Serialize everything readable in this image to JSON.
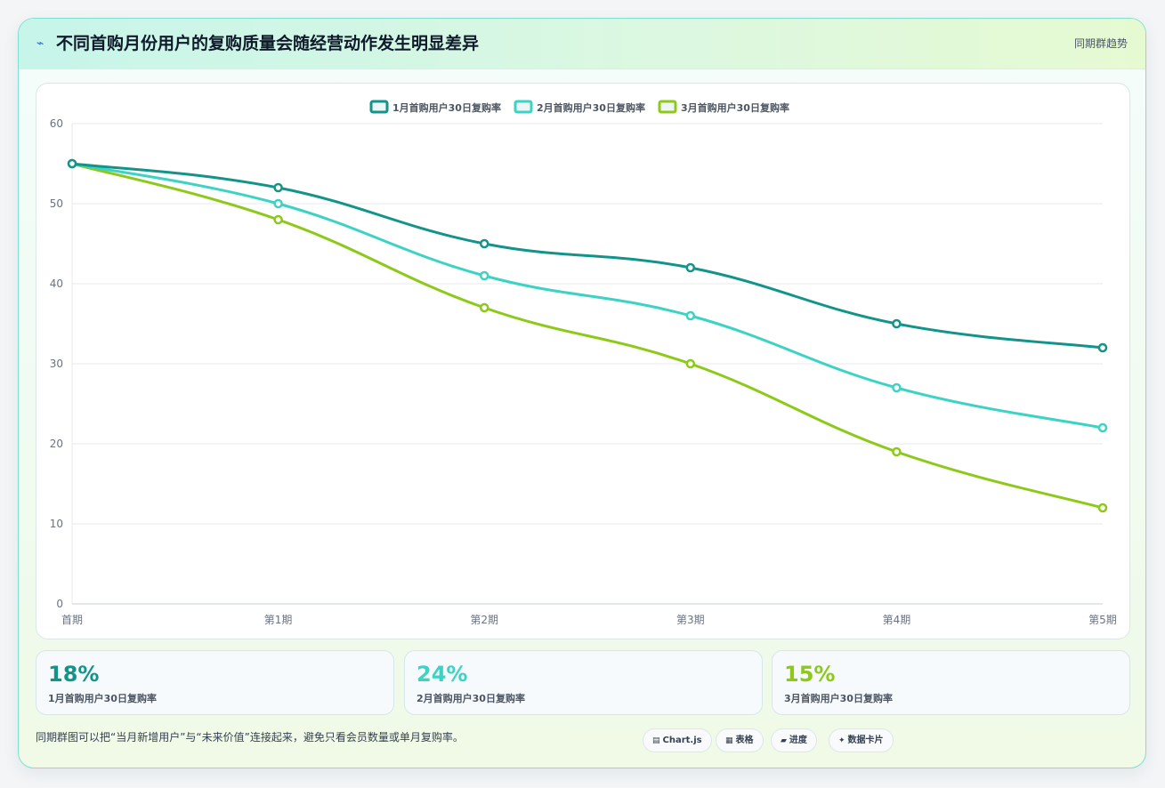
{
  "header": {
    "icon": "lightning-icon",
    "title": "不同首购月份用户的复购质量会随经营动作发生明显差异",
    "subtitle": "同期群趋势"
  },
  "chart_data": {
    "type": "line",
    "categories": [
      "首期",
      "第1期",
      "第2期",
      "第3期",
      "第4期",
      "第5期"
    ],
    "series": [
      {
        "name": "1月首购用户30日复购率",
        "color": "#13948a",
        "values": [
          55,
          52,
          45,
          42,
          35,
          32
        ]
      },
      {
        "name": "2月首购用户30日复购率",
        "color": "#3dd3c4",
        "values": [
          55,
          50,
          41,
          36,
          27,
          22
        ]
      },
      {
        "name": "3月首购用户30日复购率",
        "color": "#8cc919",
        "values": [
          55,
          48,
          37,
          30,
          19,
          12
        ]
      }
    ],
    "yticks": [
      "0",
      "10",
      "20",
      "30",
      "40",
      "50",
      "60"
    ],
    "ylim": [
      0,
      60
    ],
    "grid": true,
    "legend": "top-center",
    "smooth": true
  },
  "kpis": [
    {
      "value": "18%",
      "label": "1月首购用户30日复购率",
      "color": "#13948a"
    },
    {
      "value": "24%",
      "label": "2月首购用户30日复购率",
      "color": "#3dd3c4"
    },
    {
      "value": "15%",
      "label": "3月首购用户30日复购率",
      "color": "#8cc919"
    }
  ],
  "footer": {
    "note": "同期群图可以把“当月新增用户”与“未来价值”连接起来，避免只看会员数量或单月复购率。",
    "buttons": [
      {
        "icon": "chart-icon",
        "glyph": "▤",
        "label": "Chart.js"
      },
      {
        "icon": "table-icon",
        "glyph": "▦",
        "label": "表格"
      },
      {
        "icon": "progress-icon",
        "glyph": "▰",
        "label": "进度"
      },
      {
        "icon": "card-icon",
        "glyph": "✦",
        "label": "数据卡片"
      }
    ]
  }
}
